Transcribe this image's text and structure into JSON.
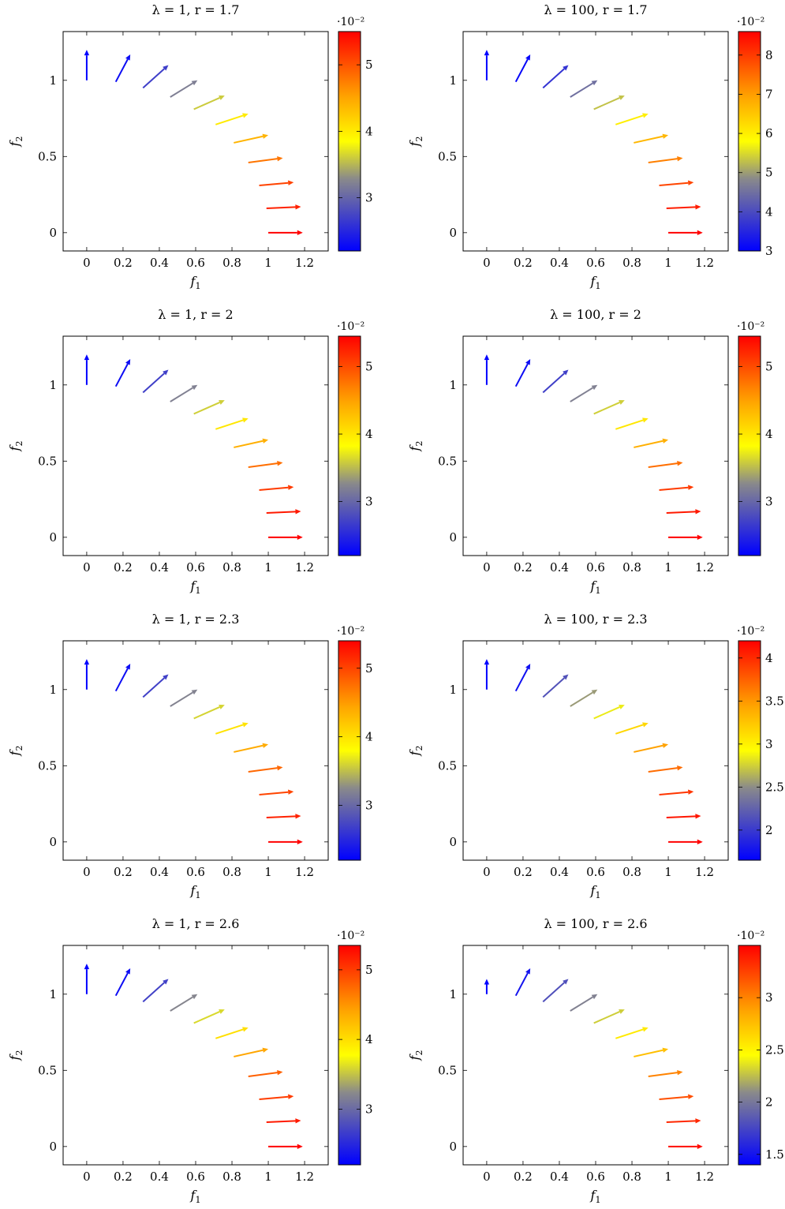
{
  "figure": {
    "panels": [
      {
        "title": "λ = 1,    r = 1.7",
        "colorbar": {
          "range": [
            2.2,
            5.5
          ],
          "ticks": [
            "3",
            "4",
            "5"
          ],
          "tick_values": [
            3,
            4,
            5
          ],
          "exponent": "·10⁻²"
        }
      },
      {
        "title": "λ = 100,    r = 1.7",
        "colorbar": {
          "range": [
            3.0,
            8.6
          ],
          "ticks": [
            "3",
            "4",
            "5",
            "6",
            "7",
            "8"
          ],
          "tick_values": [
            3,
            4,
            5,
            6,
            7,
            8
          ],
          "exponent": "·10⁻²"
        }
      },
      {
        "title": "λ = 1,    r = 2",
        "colorbar": {
          "range": [
            2.2,
            5.45
          ],
          "ticks": [
            "3",
            "4",
            "5"
          ],
          "tick_values": [
            3,
            4,
            5
          ],
          "exponent": "·10⁻²"
        }
      },
      {
        "title": "λ = 100,    r = 2",
        "colorbar": {
          "range": [
            2.2,
            5.45
          ],
          "ticks": [
            "3",
            "4",
            "5"
          ],
          "tick_values": [
            3,
            4,
            5
          ],
          "exponent": "·10⁻²"
        }
      },
      {
        "title": "λ = 1,    r = 2.3",
        "colorbar": {
          "range": [
            2.2,
            5.4
          ],
          "ticks": [
            "3",
            "4",
            "5"
          ],
          "tick_values": [
            3,
            4,
            5
          ],
          "exponent": "·10⁻²"
        }
      },
      {
        "title": "λ = 100,    r = 2.3",
        "colorbar": {
          "range": [
            1.65,
            4.2
          ],
          "ticks": [
            "2",
            "2.5",
            "3",
            "3.5",
            "4"
          ],
          "tick_values": [
            2,
            2.5,
            3,
            3.5,
            4
          ],
          "exponent": "·10⁻²"
        }
      },
      {
        "title": "λ = 1,    r = 2.6",
        "colorbar": {
          "range": [
            2.2,
            5.35
          ],
          "ticks": [
            "3",
            "4",
            "5"
          ],
          "tick_values": [
            3,
            4,
            5
          ],
          "exponent": "·10⁻²"
        }
      },
      {
        "title": "λ = 100,    r = 2.6",
        "colorbar": {
          "range": [
            1.4,
            3.5
          ],
          "ticks": [
            "1.5",
            "2",
            "2.5",
            "3"
          ],
          "tick_values": [
            1.5,
            2,
            2.5,
            3
          ],
          "exponent": "·10⁻²"
        }
      }
    ]
  },
  "chart_data": [
    {
      "type": "quiver",
      "title": "λ = 1,    r = 1.7",
      "xlabel": "f1",
      "ylabel": "f2",
      "xlim": [
        -0.13,
        1.33
      ],
      "ylim": [
        -0.12,
        1.32
      ],
      "xticks": [
        0,
        0.2,
        0.4,
        0.6,
        0.8,
        1,
        1.2
      ],
      "yticks": [
        0,
        0.5,
        1
      ],
      "arrows": [
        {
          "x": 0.0,
          "y": 1.0,
          "u": 0.0,
          "v": 0.2,
          "c": 2.2
        },
        {
          "x": 0.16,
          "y": 0.99,
          "u": 0.08,
          "v": 0.18,
          "c": 2.3
        },
        {
          "x": 0.31,
          "y": 0.95,
          "u": 0.14,
          "v": 0.15,
          "c": 2.7
        },
        {
          "x": 0.46,
          "y": 0.89,
          "u": 0.15,
          "v": 0.11,
          "c": 3.2
        },
        {
          "x": 0.59,
          "y": 0.81,
          "u": 0.17,
          "v": 0.09,
          "c": 3.6
        },
        {
          "x": 0.71,
          "y": 0.71,
          "u": 0.18,
          "v": 0.07,
          "c": 4.0
        },
        {
          "x": 0.81,
          "y": 0.59,
          "u": 0.19,
          "v": 0.05,
          "c": 4.4
        },
        {
          "x": 0.89,
          "y": 0.46,
          "u": 0.19,
          "v": 0.03,
          "c": 4.8
        },
        {
          "x": 0.95,
          "y": 0.31,
          "u": 0.19,
          "v": 0.02,
          "c": 5.1
        },
        {
          "x": 0.99,
          "y": 0.16,
          "u": 0.19,
          "v": 0.01,
          "c": 5.3
        },
        {
          "x": 1.0,
          "y": 0.0,
          "u": 0.19,
          "v": 0.0,
          "c": 5.5
        }
      ]
    },
    {
      "type": "quiver",
      "title": "λ = 100,    r = 1.7",
      "xlabel": "f1",
      "ylabel": "f2",
      "xlim": [
        -0.13,
        1.33
      ],
      "ylim": [
        -0.12,
        1.32
      ],
      "xticks": [
        0,
        0.2,
        0.4,
        0.6,
        0.8,
        1,
        1.2
      ],
      "yticks": [
        0,
        0.5,
        1
      ],
      "arrows": [
        {
          "x": 0.0,
          "y": 1.0,
          "u": 0.0,
          "v": 0.2,
          "c": 3.0
        },
        {
          "x": 0.16,
          "y": 0.99,
          "u": 0.08,
          "v": 0.18,
          "c": 3.1
        },
        {
          "x": 0.31,
          "y": 0.95,
          "u": 0.14,
          "v": 0.15,
          "c": 3.7
        },
        {
          "x": 0.46,
          "y": 0.89,
          "u": 0.15,
          "v": 0.11,
          "c": 4.5
        },
        {
          "x": 0.59,
          "y": 0.81,
          "u": 0.17,
          "v": 0.09,
          "c": 5.3
        },
        {
          "x": 0.71,
          "y": 0.71,
          "u": 0.18,
          "v": 0.07,
          "c": 6.0
        },
        {
          "x": 0.81,
          "y": 0.59,
          "u": 0.19,
          "v": 0.05,
          "c": 6.7
        },
        {
          "x": 0.89,
          "y": 0.46,
          "u": 0.19,
          "v": 0.03,
          "c": 7.3
        },
        {
          "x": 0.95,
          "y": 0.31,
          "u": 0.19,
          "v": 0.02,
          "c": 7.9
        },
        {
          "x": 0.99,
          "y": 0.16,
          "u": 0.19,
          "v": 0.01,
          "c": 8.3
        },
        {
          "x": 1.0,
          "y": 0.0,
          "u": 0.19,
          "v": 0.0,
          "c": 8.6
        }
      ]
    },
    {
      "type": "quiver",
      "title": "λ = 1,    r = 2",
      "xlabel": "f1",
      "ylabel": "f2",
      "xlim": [
        -0.13,
        1.33
      ],
      "ylim": [
        -0.12,
        1.32
      ],
      "xticks": [
        0,
        0.2,
        0.4,
        0.6,
        0.8,
        1,
        1.2
      ],
      "yticks": [
        0,
        0.5,
        1
      ],
      "arrows": [
        {
          "x": 0.0,
          "y": 1.0,
          "u": 0.0,
          "v": 0.2,
          "c": 2.2
        },
        {
          "x": 0.16,
          "y": 0.99,
          "u": 0.08,
          "v": 0.18,
          "c": 2.3
        },
        {
          "x": 0.31,
          "y": 0.95,
          "u": 0.14,
          "v": 0.15,
          "c": 2.7
        },
        {
          "x": 0.46,
          "y": 0.89,
          "u": 0.15,
          "v": 0.11,
          "c": 3.2
        },
        {
          "x": 0.59,
          "y": 0.81,
          "u": 0.17,
          "v": 0.09,
          "c": 3.6
        },
        {
          "x": 0.71,
          "y": 0.71,
          "u": 0.18,
          "v": 0.07,
          "c": 4.0
        },
        {
          "x": 0.81,
          "y": 0.59,
          "u": 0.19,
          "v": 0.05,
          "c": 4.4
        },
        {
          "x": 0.89,
          "y": 0.46,
          "u": 0.19,
          "v": 0.03,
          "c": 4.8
        },
        {
          "x": 0.95,
          "y": 0.31,
          "u": 0.19,
          "v": 0.02,
          "c": 5.1
        },
        {
          "x": 0.99,
          "y": 0.16,
          "u": 0.19,
          "v": 0.01,
          "c": 5.3
        },
        {
          "x": 1.0,
          "y": 0.0,
          "u": 0.19,
          "v": 0.0,
          "c": 5.45
        }
      ]
    },
    {
      "type": "quiver",
      "title": "λ = 100,    r = 2",
      "xlabel": "f1",
      "ylabel": "f2",
      "xlim": [
        -0.13,
        1.33
      ],
      "ylim": [
        -0.12,
        1.32
      ],
      "xticks": [
        0,
        0.2,
        0.4,
        0.6,
        0.8,
        1,
        1.2
      ],
      "yticks": [
        0,
        0.5,
        1
      ],
      "arrows": [
        {
          "x": 0.0,
          "y": 1.0,
          "u": 0.0,
          "v": 0.2,
          "c": 2.2
        },
        {
          "x": 0.16,
          "y": 0.99,
          "u": 0.08,
          "v": 0.18,
          "c": 2.3
        },
        {
          "x": 0.31,
          "y": 0.95,
          "u": 0.14,
          "v": 0.15,
          "c": 2.7
        },
        {
          "x": 0.46,
          "y": 0.89,
          "u": 0.15,
          "v": 0.11,
          "c": 3.2
        },
        {
          "x": 0.59,
          "y": 0.81,
          "u": 0.17,
          "v": 0.09,
          "c": 3.6
        },
        {
          "x": 0.71,
          "y": 0.71,
          "u": 0.18,
          "v": 0.07,
          "c": 4.0
        },
        {
          "x": 0.81,
          "y": 0.59,
          "u": 0.19,
          "v": 0.05,
          "c": 4.4
        },
        {
          "x": 0.89,
          "y": 0.46,
          "u": 0.19,
          "v": 0.03,
          "c": 4.8
        },
        {
          "x": 0.95,
          "y": 0.31,
          "u": 0.19,
          "v": 0.02,
          "c": 5.1
        },
        {
          "x": 0.99,
          "y": 0.16,
          "u": 0.19,
          "v": 0.01,
          "c": 5.3
        },
        {
          "x": 1.0,
          "y": 0.0,
          "u": 0.19,
          "v": 0.0,
          "c": 5.45
        }
      ]
    },
    {
      "type": "quiver",
      "title": "λ = 1,    r = 2.3",
      "xlabel": "f1",
      "ylabel": "f2",
      "xlim": [
        -0.13,
        1.33
      ],
      "ylim": [
        -0.12,
        1.32
      ],
      "xticks": [
        0,
        0.2,
        0.4,
        0.6,
        0.8,
        1,
        1.2
      ],
      "yticks": [
        0,
        0.5,
        1
      ],
      "arrows": [
        {
          "x": 0.0,
          "y": 1.0,
          "u": 0.0,
          "v": 0.2,
          "c": 2.2
        },
        {
          "x": 0.16,
          "y": 0.99,
          "u": 0.08,
          "v": 0.18,
          "c": 2.3
        },
        {
          "x": 0.31,
          "y": 0.95,
          "u": 0.14,
          "v": 0.15,
          "c": 2.7
        },
        {
          "x": 0.46,
          "y": 0.89,
          "u": 0.15,
          "v": 0.11,
          "c": 3.2
        },
        {
          "x": 0.59,
          "y": 0.81,
          "u": 0.17,
          "v": 0.09,
          "c": 3.6
        },
        {
          "x": 0.71,
          "y": 0.71,
          "u": 0.18,
          "v": 0.07,
          "c": 4.0
        },
        {
          "x": 0.81,
          "y": 0.59,
          "u": 0.19,
          "v": 0.05,
          "c": 4.4
        },
        {
          "x": 0.89,
          "y": 0.46,
          "u": 0.19,
          "v": 0.03,
          "c": 4.8
        },
        {
          "x": 0.95,
          "y": 0.31,
          "u": 0.19,
          "v": 0.02,
          "c": 5.0
        },
        {
          "x": 0.99,
          "y": 0.16,
          "u": 0.19,
          "v": 0.01,
          "c": 5.2
        },
        {
          "x": 1.0,
          "y": 0.0,
          "u": 0.19,
          "v": 0.0,
          "c": 5.4
        }
      ]
    },
    {
      "type": "quiver",
      "title": "λ = 100,    r = 2.3",
      "xlabel": "f1",
      "ylabel": "f2",
      "xlim": [
        -0.13,
        1.33
      ],
      "ylim": [
        -0.12,
        1.32
      ],
      "xticks": [
        0,
        0.2,
        0.4,
        0.6,
        0.8,
        1,
        1.2
      ],
      "yticks": [
        0,
        0.5,
        1
      ],
      "arrows": [
        {
          "x": 0.0,
          "y": 1.0,
          "u": 0.0,
          "v": 0.2,
          "c": 1.65
        },
        {
          "x": 0.16,
          "y": 0.99,
          "u": 0.08,
          "v": 0.18,
          "c": 1.75
        },
        {
          "x": 0.31,
          "y": 0.95,
          "u": 0.14,
          "v": 0.15,
          "c": 2.15
        },
        {
          "x": 0.46,
          "y": 0.89,
          "u": 0.15,
          "v": 0.11,
          "c": 2.55
        },
        {
          "x": 0.59,
          "y": 0.81,
          "u": 0.17,
          "v": 0.09,
          "c": 2.85
        },
        {
          "x": 0.71,
          "y": 0.71,
          "u": 0.18,
          "v": 0.07,
          "c": 3.15
        },
        {
          "x": 0.81,
          "y": 0.59,
          "u": 0.19,
          "v": 0.05,
          "c": 3.45
        },
        {
          "x": 0.89,
          "y": 0.46,
          "u": 0.19,
          "v": 0.03,
          "c": 3.7
        },
        {
          "x": 0.95,
          "y": 0.31,
          "u": 0.19,
          "v": 0.02,
          "c": 3.95
        },
        {
          "x": 0.99,
          "y": 0.16,
          "u": 0.19,
          "v": 0.01,
          "c": 4.1
        },
        {
          "x": 1.0,
          "y": 0.0,
          "u": 0.19,
          "v": 0.0,
          "c": 4.2
        }
      ]
    },
    {
      "type": "quiver",
      "title": "λ = 1,    r = 2.6",
      "xlabel": "f1",
      "ylabel": "f2",
      "xlim": [
        -0.13,
        1.33
      ],
      "ylim": [
        -0.12,
        1.32
      ],
      "xticks": [
        0,
        0.2,
        0.4,
        0.6,
        0.8,
        1,
        1.2
      ],
      "yticks": [
        0,
        0.5,
        1
      ],
      "arrows": [
        {
          "x": 0.0,
          "y": 1.0,
          "u": 0.0,
          "v": 0.2,
          "c": 2.2
        },
        {
          "x": 0.16,
          "y": 0.99,
          "u": 0.08,
          "v": 0.18,
          "c": 2.3
        },
        {
          "x": 0.31,
          "y": 0.95,
          "u": 0.14,
          "v": 0.15,
          "c": 2.7
        },
        {
          "x": 0.46,
          "y": 0.89,
          "u": 0.15,
          "v": 0.11,
          "c": 3.2
        },
        {
          "x": 0.59,
          "y": 0.81,
          "u": 0.17,
          "v": 0.09,
          "c": 3.6
        },
        {
          "x": 0.71,
          "y": 0.71,
          "u": 0.18,
          "v": 0.07,
          "c": 4.0
        },
        {
          "x": 0.81,
          "y": 0.59,
          "u": 0.19,
          "v": 0.05,
          "c": 4.4
        },
        {
          "x": 0.89,
          "y": 0.46,
          "u": 0.19,
          "v": 0.03,
          "c": 4.8
        },
        {
          "x": 0.95,
          "y": 0.31,
          "u": 0.19,
          "v": 0.02,
          "c": 5.0
        },
        {
          "x": 0.99,
          "y": 0.16,
          "u": 0.19,
          "v": 0.01,
          "c": 5.2
        },
        {
          "x": 1.0,
          "y": 0.0,
          "u": 0.19,
          "v": 0.0,
          "c": 5.35
        }
      ]
    },
    {
      "type": "quiver",
      "title": "λ = 100,    r = 2.6",
      "xlabel": "f1",
      "ylabel": "f2",
      "xlim": [
        -0.13,
        1.33
      ],
      "ylim": [
        -0.12,
        1.32
      ],
      "xticks": [
        0,
        0.2,
        0.4,
        0.6,
        0.8,
        1,
        1.2
      ],
      "yticks": [
        0,
        0.5,
        1
      ],
      "arrows": [
        {
          "x": 0.0,
          "y": 1.0,
          "u": 0.0,
          "v": 0.1,
          "c": 1.4
        },
        {
          "x": 0.16,
          "y": 0.99,
          "u": 0.08,
          "v": 0.18,
          "c": 1.5
        },
        {
          "x": 0.31,
          "y": 0.95,
          "u": 0.14,
          "v": 0.15,
          "c": 1.8
        },
        {
          "x": 0.46,
          "y": 0.89,
          "u": 0.15,
          "v": 0.11,
          "c": 2.05
        },
        {
          "x": 0.59,
          "y": 0.81,
          "u": 0.17,
          "v": 0.09,
          "c": 2.3
        },
        {
          "x": 0.71,
          "y": 0.71,
          "u": 0.18,
          "v": 0.07,
          "c": 2.55
        },
        {
          "x": 0.81,
          "y": 0.59,
          "u": 0.19,
          "v": 0.05,
          "c": 2.75
        },
        {
          "x": 0.89,
          "y": 0.46,
          "u": 0.19,
          "v": 0.03,
          "c": 3.0
        },
        {
          "x": 0.95,
          "y": 0.31,
          "u": 0.19,
          "v": 0.02,
          "c": 3.2
        },
        {
          "x": 0.99,
          "y": 0.16,
          "u": 0.19,
          "v": 0.01,
          "c": 3.35
        },
        {
          "x": 1.0,
          "y": 0.0,
          "u": 0.19,
          "v": 0.0,
          "c": 3.45
        }
      ]
    }
  ],
  "colormap": {
    "stops": [
      "#0000ff",
      "#8a8a8a",
      "#ffff00",
      "#ffa500",
      "#ff0000"
    ],
    "positions": [
      0,
      0.33,
      0.5,
      0.7,
      1
    ]
  }
}
